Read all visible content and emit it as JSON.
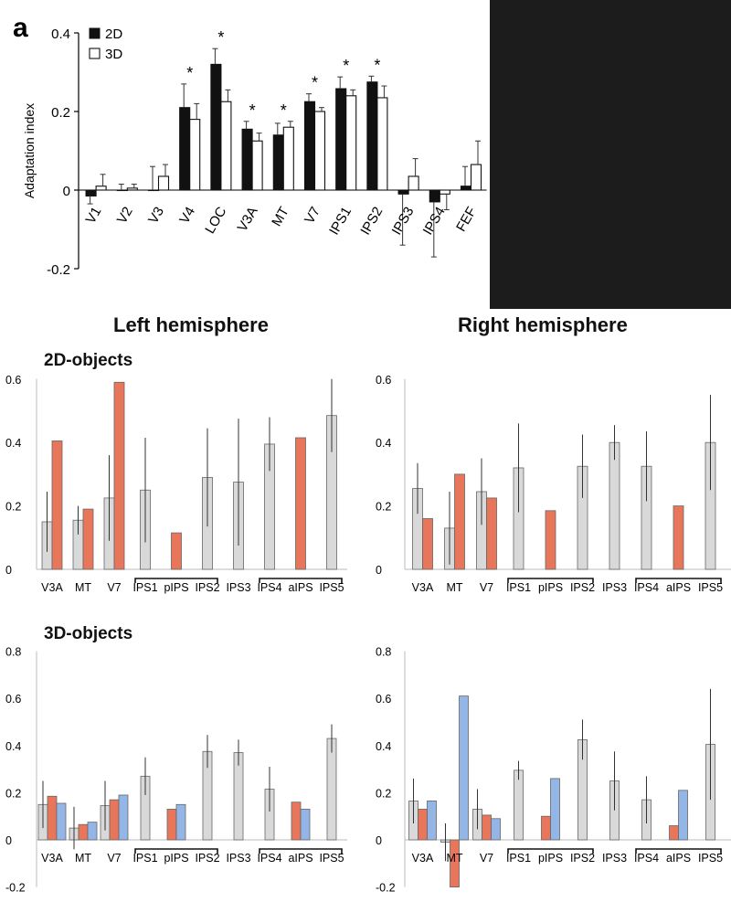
{
  "panel_letter": "a",
  "headers": {
    "left": "Left hemisphere",
    "right": "Right hemisphere"
  },
  "rows": {
    "row1": "2D-objects",
    "row2": "3D-objects"
  },
  "colors": {
    "gray": "#d9d9d9",
    "orange": "#e8765b",
    "blue": "#93b6e6",
    "black": "#111111"
  },
  "chart_data": [
    {
      "type": "bar",
      "categories": [
        "V1",
        "V2",
        "V3",
        "V4",
        "LOC",
        "V3A",
        "MT",
        "V7",
        "IPS1",
        "IPS2",
        "IPS3",
        "IPS4",
        "FEF"
      ],
      "series": [
        {
          "name": "2D",
          "values": [
            -0.015,
            0.0,
            0.0,
            0.21,
            0.32,
            0.155,
            0.14,
            0.225,
            0.258,
            0.275,
            -0.01,
            -0.03,
            0.01
          ],
          "err": [
            0.02,
            0.015,
            0.06,
            0.06,
            0.04,
            0.02,
            0.03,
            0.02,
            0.03,
            0.015,
            0.13,
            0.14,
            0.05
          ]
        },
        {
          "name": "3D",
          "values": [
            0.01,
            0.005,
            0.035,
            0.18,
            0.225,
            0.125,
            0.16,
            0.2,
            0.24,
            0.235,
            0.035,
            -0.01,
            0.065
          ],
          "err": [
            0.03,
            0.01,
            0.03,
            0.04,
            0.03,
            0.02,
            0.015,
            0.01,
            0.015,
            0.03,
            0.045,
            0.04,
            0.06
          ]
        }
      ],
      "significant": [
        "V4",
        "LOC",
        "V3A",
        "MT",
        "V7",
        "IPS1",
        "IPS2"
      ],
      "star": "*",
      "ylabel": "Adaptation index",
      "ylim": [
        -0.2,
        0.4
      ],
      "yticks": [
        "-0.2",
        "0",
        "0.2",
        "0.4"
      ],
      "legend": "top-left"
    },
    {
      "type": "bar",
      "categories": [
        "V3A",
        "MT",
        "V7",
        "IPS1",
        "pIPS",
        "IPS2",
        "IPS3",
        "IPS4",
        "aIPS",
        "IPS5"
      ],
      "bars": [
        {
          "cat": 0,
          "c": "gray",
          "v": 0.15,
          "e": 0.095
        },
        {
          "cat": 0,
          "c": "orange",
          "v": 0.405
        },
        {
          "cat": 1,
          "c": "gray",
          "v": 0.155,
          "e": 0.045
        },
        {
          "cat": 1,
          "c": "orange",
          "v": 0.19
        },
        {
          "cat": 2,
          "c": "gray",
          "v": 0.225,
          "e": 0.135
        },
        {
          "cat": 2,
          "c": "orange",
          "v": 0.59
        },
        {
          "cat": 3,
          "c": "gray",
          "v": 0.25,
          "e": 0.165
        },
        {
          "cat": 4,
          "c": "orange",
          "v": 0.115
        },
        {
          "cat": 5,
          "c": "gray",
          "v": 0.29,
          "e": 0.155
        },
        {
          "cat": 6,
          "c": "gray",
          "v": 0.275,
          "e": 0.2
        },
        {
          "cat": 7,
          "c": "gray",
          "v": 0.395,
          "e": 0.085
        },
        {
          "cat": 8,
          "c": "orange",
          "v": 0.415
        },
        {
          "cat": 9,
          "c": "gray",
          "v": 0.485,
          "e": 0.115
        }
      ],
      "brackets": [
        [
          3,
          5
        ],
        [
          7,
          9
        ]
      ],
      "ylim": [
        0,
        0.6
      ],
      "yticks": [
        "0",
        "0.2",
        "0.4",
        "0.6"
      ]
    },
    {
      "type": "bar",
      "categories": [
        "V3A",
        "MT",
        "V7",
        "IPS1",
        "pIPS",
        "IPS2",
        "IPS3",
        "IPS4",
        "aIPS",
        "IPS5"
      ],
      "bars": [
        {
          "cat": 0,
          "c": "gray",
          "v": 0.255,
          "e": 0.08
        },
        {
          "cat": 0,
          "c": "orange",
          "v": 0.16
        },
        {
          "cat": 1,
          "c": "gray",
          "v": 0.13,
          "e": 0.115
        },
        {
          "cat": 1,
          "c": "orange",
          "v": 0.3
        },
        {
          "cat": 2,
          "c": "gray",
          "v": 0.245,
          "e": 0.105
        },
        {
          "cat": 2,
          "c": "orange",
          "v": 0.225
        },
        {
          "cat": 3,
          "c": "gray",
          "v": 0.32,
          "e": 0.14
        },
        {
          "cat": 4,
          "c": "orange",
          "v": 0.185
        },
        {
          "cat": 5,
          "c": "gray",
          "v": 0.325,
          "e": 0.1
        },
        {
          "cat": 6,
          "c": "gray",
          "v": 0.4,
          "e": 0.055
        },
        {
          "cat": 7,
          "c": "gray",
          "v": 0.325,
          "e": 0.11
        },
        {
          "cat": 8,
          "c": "orange",
          "v": 0.2
        },
        {
          "cat": 9,
          "c": "gray",
          "v": 0.4,
          "e": 0.15
        }
      ],
      "brackets": [
        [
          3,
          5
        ],
        [
          7,
          9
        ]
      ],
      "ylim": [
        0,
        0.6
      ],
      "yticks": [
        "0",
        "0.2",
        "0.4",
        "0.6"
      ]
    },
    {
      "type": "bar",
      "categories": [
        "V3A",
        "MT",
        "V7",
        "IPS1",
        "pIPS",
        "IPS2",
        "IPS3",
        "IPS4",
        "aIPS",
        "IPS5"
      ],
      "bars": [
        {
          "cat": 0,
          "c": "gray",
          "v": 0.15,
          "e": 0.1
        },
        {
          "cat": 0,
          "c": "orange",
          "v": 0.185
        },
        {
          "cat": 0,
          "c": "blue",
          "v": 0.155
        },
        {
          "cat": 1,
          "c": "gray",
          "v": 0.05,
          "e": 0.09
        },
        {
          "cat": 1,
          "c": "orange",
          "v": 0.065
        },
        {
          "cat": 1,
          "c": "blue",
          "v": 0.075
        },
        {
          "cat": 2,
          "c": "gray",
          "v": 0.145,
          "e": 0.105
        },
        {
          "cat": 2,
          "c": "orange",
          "v": 0.17
        },
        {
          "cat": 2,
          "c": "blue",
          "v": 0.19
        },
        {
          "cat": 3,
          "c": "gray",
          "v": 0.27,
          "e": 0.08
        },
        {
          "cat": 4,
          "c": "orange",
          "v": 0.13
        },
        {
          "cat": 4,
          "c": "blue",
          "v": 0.15
        },
        {
          "cat": 5,
          "c": "gray",
          "v": 0.375,
          "e": 0.07
        },
        {
          "cat": 6,
          "c": "gray",
          "v": 0.37,
          "e": 0.055
        },
        {
          "cat": 7,
          "c": "gray",
          "v": 0.215,
          "e": 0.095
        },
        {
          "cat": 8,
          "c": "orange",
          "v": 0.16
        },
        {
          "cat": 8,
          "c": "blue",
          "v": 0.13
        },
        {
          "cat": 9,
          "c": "gray",
          "v": 0.43,
          "e": 0.06
        }
      ],
      "brackets": [
        [
          3,
          5
        ],
        [
          7,
          9
        ]
      ],
      "ylim": [
        -0.2,
        0.8
      ],
      "yticks": [
        "-0.2",
        "0",
        "0.2",
        "0.4",
        "0.6",
        "0.8"
      ]
    },
    {
      "type": "bar",
      "categories": [
        "V3A",
        "MT",
        "V7",
        "IPS1",
        "pIPS",
        "IPS2",
        "IPS3",
        "IPS4",
        "aIPS",
        "IPS5"
      ],
      "bars": [
        {
          "cat": 0,
          "c": "gray",
          "v": 0.165,
          "e": 0.095
        },
        {
          "cat": 0,
          "c": "orange",
          "v": 0.13
        },
        {
          "cat": 0,
          "c": "blue",
          "v": 0.165
        },
        {
          "cat": 1,
          "c": "gray",
          "v": -0.01,
          "e": 0.08
        },
        {
          "cat": 1,
          "c": "orange",
          "v": -0.2
        },
        {
          "cat": 1,
          "c": "blue",
          "v": 0.61
        },
        {
          "cat": 2,
          "c": "gray",
          "v": 0.13,
          "e": 0.085
        },
        {
          "cat": 2,
          "c": "orange",
          "v": 0.105
        },
        {
          "cat": 2,
          "c": "blue",
          "v": 0.09
        },
        {
          "cat": 3,
          "c": "gray",
          "v": 0.295,
          "e": 0.04
        },
        {
          "cat": 4,
          "c": "orange",
          "v": 0.1
        },
        {
          "cat": 4,
          "c": "blue",
          "v": 0.26
        },
        {
          "cat": 5,
          "c": "gray",
          "v": 0.425,
          "e": 0.085
        },
        {
          "cat": 6,
          "c": "gray",
          "v": 0.25,
          "e": 0.125
        },
        {
          "cat": 7,
          "c": "gray",
          "v": 0.17,
          "e": 0.1
        },
        {
          "cat": 8,
          "c": "orange",
          "v": 0.06
        },
        {
          "cat": 8,
          "c": "blue",
          "v": 0.21
        },
        {
          "cat": 9,
          "c": "gray",
          "v": 0.405,
          "e": 0.235
        }
      ],
      "brackets": [
        [
          3,
          5
        ],
        [
          7,
          9
        ]
      ],
      "ylim": [
        -0.2,
        0.8
      ],
      "yticks": [
        "-0.2",
        "0",
        "0.2",
        "0.4",
        "0.6",
        "0.8"
      ]
    }
  ]
}
